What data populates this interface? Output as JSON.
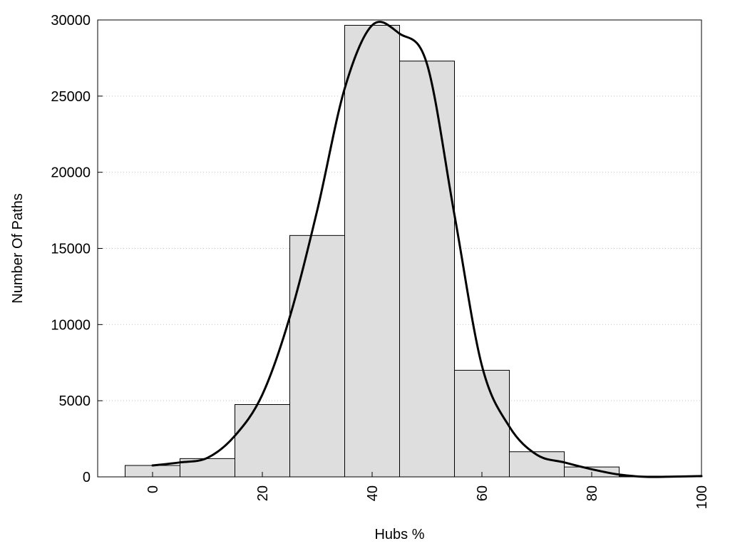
{
  "chart_data": {
    "type": "bar",
    "title": "",
    "xlabel": "Hubs %",
    "ylabel": "Number Of Paths",
    "xlim": [
      -10,
      100
    ],
    "ylim": [
      0,
      30000
    ],
    "grid": true,
    "x_ticks": [
      0,
      20,
      40,
      60,
      80,
      100
    ],
    "y_ticks": [
      0,
      5000,
      10000,
      15000,
      20000,
      25000,
      30000
    ],
    "bin_width": 10,
    "bins": [
      {
        "center": 0,
        "value": 750
      },
      {
        "center": 10,
        "value": 1200
      },
      {
        "center": 20,
        "value": 4750
      },
      {
        "center": 30,
        "value": 15850
      },
      {
        "center": 40,
        "value": 29650
      },
      {
        "center": 50,
        "value": 27300
      },
      {
        "center": 60,
        "value": 7000
      },
      {
        "center": 70,
        "value": 1650
      },
      {
        "center": 80,
        "value": 650
      },
      {
        "center": 90,
        "value": 50
      },
      {
        "center": 100,
        "value": 50
      }
    ],
    "series": [
      {
        "type": "line",
        "x": [
          0,
          5,
          10,
          15,
          20,
          25,
          30,
          35,
          40,
          45,
          50,
          55,
          60,
          65,
          70,
          75,
          80,
          85,
          90,
          95,
          100
        ],
        "y": [
          750,
          950,
          1250,
          2700,
          5400,
          10500,
          17500,
          25500,
          29650,
          29100,
          27100,
          17200,
          7300,
          3300,
          1450,
          950,
          500,
          150,
          0,
          20,
          50
        ]
      }
    ]
  }
}
